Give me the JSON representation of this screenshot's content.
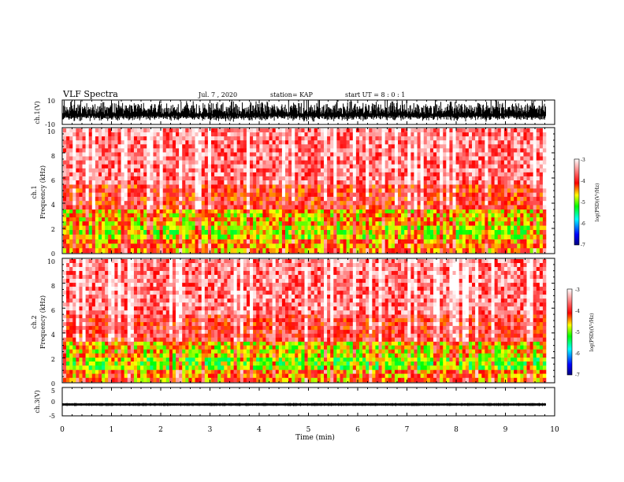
{
  "header": {
    "title": "VLF Spectra",
    "date": "Jul. 7 , 2020",
    "station": "station= KAP",
    "start": "start UT = 8 : 0 : 1"
  },
  "chart_data": [
    {
      "type": "line",
      "name": "ch1-waveform",
      "ylabel": "ch.1(V)",
      "ylim": [
        -10,
        10
      ],
      "yticks": [
        "10",
        "-10"
      ],
      "xlim": [
        0,
        10
      ],
      "description_level": {
        "baseline_V": -1.5,
        "amplitude_V": 6.5
      }
    },
    {
      "type": "heatmap",
      "name": "ch1-spectrogram",
      "ylabel": "ch.1",
      "ylabel2": "Frequency (kHz)",
      "ylim": [
        0,
        10
      ],
      "yticks": [
        "0",
        "2",
        "4",
        "6",
        "8",
        "10"
      ],
      "xlim": [
        0,
        10
      ],
      "colorbar": {
        "label": "log(PSD)(V²/Hz)",
        "range": [
          -7,
          -3
        ],
        "ticks": [
          "-3",
          "-4",
          "-5",
          "-6",
          "-7"
        ]
      },
      "bands_kHz": [
        {
          "from": 0,
          "to": 1.1,
          "level": -4.4
        },
        {
          "from": 1.1,
          "to": 2.2,
          "level": -4.8
        },
        {
          "from": 2.2,
          "to": 3.5,
          "level": -4.6
        },
        {
          "from": 3.5,
          "to": 5.5,
          "level": -4.0
        },
        {
          "from": 5.5,
          "to": 10,
          "level": -3.6
        }
      ]
    },
    {
      "type": "heatmap",
      "name": "ch2-spectrogram",
      "ylabel": "ch.2",
      "ylabel2": "Frequency (kHz)",
      "ylim": [
        0,
        10
      ],
      "yticks": [
        "0",
        "2",
        "4",
        "6",
        "8",
        "10"
      ],
      "xlim": [
        0,
        10
      ],
      "colorbar": {
        "label": "log(PSD)(V²/Hz)",
        "range": [
          -7,
          -3
        ],
        "ticks": [
          "-3",
          "-4",
          "-5",
          "-6",
          "-7"
        ]
      },
      "bands_kHz": [
        {
          "from": 0,
          "to": 1.0,
          "level": -4.4
        },
        {
          "from": 1.0,
          "to": 2.0,
          "level": -5.0
        },
        {
          "from": 2.0,
          "to": 3.3,
          "level": -4.7
        },
        {
          "from": 3.3,
          "to": 5.5,
          "level": -3.9
        },
        {
          "from": 5.5,
          "to": 10,
          "level": -3.6
        }
      ]
    },
    {
      "type": "line",
      "name": "ch3-waveform",
      "ylabel": "ch.3(V)",
      "ylim": [
        -5,
        5
      ],
      "yticks": [
        "5",
        "0",
        "-5"
      ],
      "xlim": [
        0,
        10
      ],
      "description_level": {
        "baseline_V": -1.0,
        "amplitude_V": 0.35
      }
    }
  ],
  "xaxis": {
    "label": "Time (min)",
    "range": [
      0,
      10
    ],
    "ticks": [
      "0",
      "1",
      "2",
      "3",
      "4",
      "5",
      "6",
      "7",
      "8",
      "9",
      "10"
    ]
  },
  "colors": {
    "ink": "#000000",
    "colormap": [
      "#00007f",
      "#0000ff",
      "#00ffff",
      "#00ff00",
      "#ffff00",
      "#ff0000",
      "#ffffff"
    ]
  }
}
